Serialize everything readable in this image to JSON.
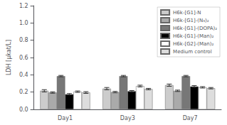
{
  "chart_data": {
    "type": "bar",
    "categories": [
      "Day1",
      "Day3",
      "Day7"
    ],
    "series": [
      {
        "name": "H6k-[G1]-N",
        "color": "#cccccc",
        "values": [
          0.215,
          0.24,
          0.28
        ],
        "errors": [
          0.013,
          0.013,
          0.013
        ]
      },
      {
        "name": "H6k-[G1]-(N₃)₂",
        "color": "#aaaaaa",
        "values": [
          0.195,
          0.2,
          0.215
        ],
        "errors": [
          0.008,
          0.008,
          0.008
        ]
      },
      {
        "name": "H6k-[G1]-(DOPA)₂",
        "color": "#777777",
        "values": [
          0.385,
          0.385,
          0.385
        ],
        "errors": [
          0.008,
          0.008,
          0.008
        ]
      },
      {
        "name": "H6k-[G1]-(Man)₂",
        "color": "#000000",
        "values": [
          0.175,
          0.21,
          0.265
        ],
        "errors": [
          0.008,
          0.008,
          0.01
        ]
      },
      {
        "name": "H6k-[G2]-(Man)₂",
        "color": "#ffffff",
        "values": [
          0.205,
          0.27,
          0.255
        ],
        "errors": [
          0.008,
          0.01,
          0.008
        ]
      },
      {
        "name": "Medium control",
        "color": "#dddddd",
        "values": [
          0.195,
          0.235,
          0.245
        ],
        "errors": [
          0.01,
          0.008,
          0.008
        ]
      }
    ],
    "ylabel": "LDH [μkat/L]",
    "ylim": [
      0,
      1.2
    ],
    "yticks": [
      {
        "value": 0.0,
        "label": "0.0"
      },
      0.2,
      0.4,
      0.6,
      0.8,
      {
        "value": 1.0,
        "label": "1.0"
      },
      1.2
    ],
    "grid": false,
    "legend": "upper right"
  }
}
